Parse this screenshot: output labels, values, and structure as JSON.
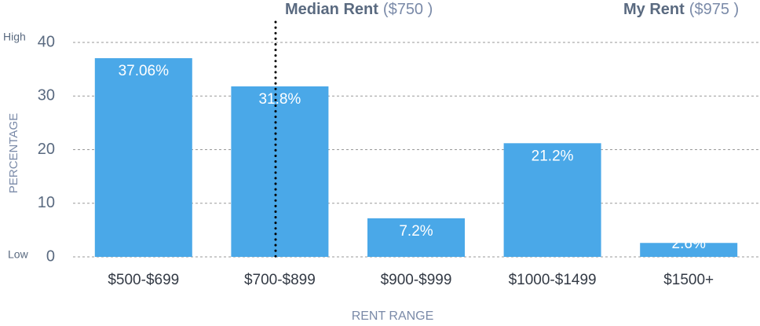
{
  "chart_data": {
    "type": "bar",
    "categories": [
      "$500-$699",
      "$700-$899",
      "$900-$999",
      "$1000-$1499",
      "$1500+"
    ],
    "values": [
      37.06,
      31.8,
      7.2,
      21.2,
      2.6
    ],
    "value_labels": [
      "37.06%",
      "31.8%",
      "7.2%",
      "21.2%",
      "2.6%"
    ],
    "color": "#4aa8e8",
    "ylim": [
      0,
      40
    ],
    "yticks": [
      0,
      10,
      20,
      30,
      40
    ],
    "grid": true,
    "xlabel": "RENT RANGE",
    "ylabel": "PERCENTAGE",
    "high_label": "High",
    "low_label": "Low",
    "annotations": [
      {
        "label": "Median Rent",
        "value": "($750 )"
      },
      {
        "label": "My Rent",
        "value": "($975 )"
      }
    ]
  }
}
